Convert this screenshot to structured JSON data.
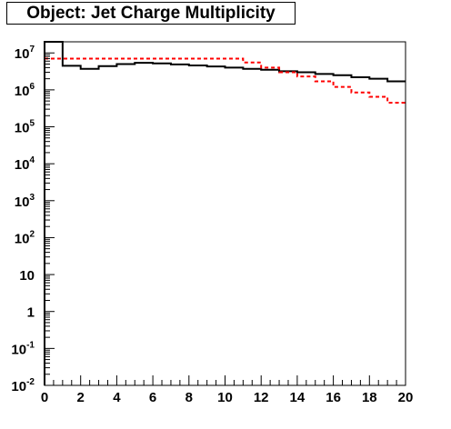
{
  "chart_data": {
    "type": "step",
    "title": "Object: Jet Charge Multiplicity",
    "xlim": [
      0,
      20
    ],
    "ylim": [
      0.01,
      20000000
    ],
    "yscale": "log",
    "x_ticks": [
      "0",
      "2",
      "4",
      "6",
      "8",
      "10",
      "12",
      "14",
      "16",
      "18",
      "20"
    ],
    "y_ticks": [
      {
        "value": 0.01,
        "base": "10",
        "exp": "-2"
      },
      {
        "value": 0.1,
        "base": "10",
        "exp": "-1"
      },
      {
        "value": 1,
        "base": "1",
        "exp": ""
      },
      {
        "value": 10,
        "base": "10",
        "exp": ""
      },
      {
        "value": 100,
        "base": "10",
        "exp": "2"
      },
      {
        "value": 1000,
        "base": "10",
        "exp": "3"
      },
      {
        "value": 10000,
        "base": "10",
        "exp": "4"
      },
      {
        "value": 100000,
        "base": "10",
        "exp": "5"
      },
      {
        "value": 1000000,
        "base": "10",
        "exp": "6"
      },
      {
        "value": 10000000,
        "base": "10",
        "exp": "7"
      }
    ],
    "bin_edges": [
      0,
      1,
      2,
      3,
      4,
      5,
      6,
      7,
      8,
      9,
      10,
      11,
      12,
      13,
      14,
      15,
      16,
      17,
      18,
      19,
      20
    ],
    "series": [
      {
        "color": "#000000",
        "style": "solid",
        "values": [
          25000000,
          4500000,
          3700000,
          4400000,
          5000000,
          5400000,
          5200000,
          4900000,
          4600000,
          4300000,
          4000000,
          3700000,
          3500000,
          3200000,
          3000000,
          2700000,
          2500000,
          2200000,
          2000000,
          1700000
        ]
      },
      {
        "color": "#ff0000",
        "style": "dashed",
        "values": [
          7000000,
          7000000,
          7000000,
          7000000,
          7000000,
          7000000,
          7000000,
          7000000,
          7000000,
          7000000,
          7000000,
          5500000,
          4000000,
          3000000,
          2300000,
          1700000,
          1200000,
          850000,
          650000,
          450000
        ]
      }
    ]
  }
}
